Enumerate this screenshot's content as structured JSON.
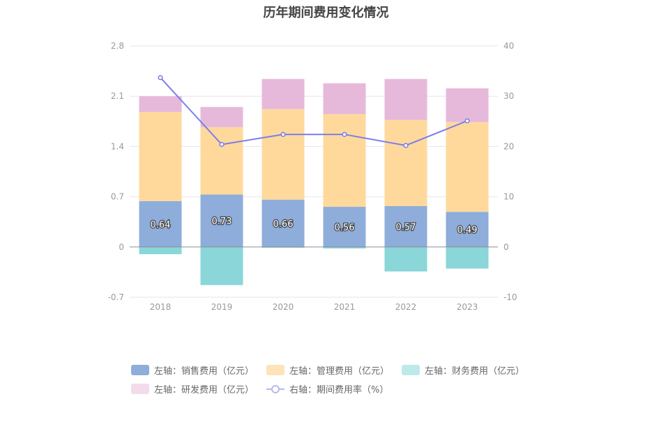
{
  "chart_data": {
    "type": "bar",
    "title": "历年期间费用变化情况",
    "categories": [
      "2018",
      "2019",
      "2020",
      "2021",
      "2022",
      "2023"
    ],
    "left_axis": {
      "min": -0.7,
      "max": 2.8,
      "ticks": [
        "-0.7",
        "0",
        "0.7",
        "1.4",
        "2.1",
        "2.8"
      ]
    },
    "right_axis": {
      "min": -10,
      "max": 40,
      "ticks": [
        "-10",
        "0",
        "10",
        "20",
        "30",
        "40"
      ]
    },
    "series": [
      {
        "name": "左轴：销售费用（亿元）",
        "type": "bar",
        "axis": "left",
        "color": "#8eaddb",
        "values": [
          0.64,
          0.73,
          0.66,
          0.56,
          0.57,
          0.49
        ],
        "show_labels": true
      },
      {
        "name": "左轴：管理费用（亿元）",
        "type": "bar",
        "axis": "left",
        "color": "#ffd99c",
        "values": [
          1.24,
          0.94,
          1.26,
          1.29,
          1.2,
          1.25
        ]
      },
      {
        "name": "左轴：财务费用（亿元）",
        "type": "bar",
        "axis": "left",
        "color": "#8ad6d9",
        "values": [
          -0.1,
          -0.53,
          -0.01,
          -0.02,
          -0.34,
          -0.3
        ]
      },
      {
        "name": "左轴：研发费用（亿元）",
        "type": "bar",
        "axis": "left",
        "color": "#e6b9da",
        "values": [
          0.22,
          0.28,
          0.42,
          0.43,
          0.57,
          0.47
        ]
      },
      {
        "name": "右轴：期间费用率（%）",
        "type": "line",
        "axis": "right",
        "color": "#7b7fe6",
        "values": [
          33.7,
          20.4,
          22.4,
          22.4,
          20.2,
          25.1
        ]
      }
    ],
    "legend": [
      {
        "label": "左轴：销售费用（亿元）",
        "color": "#8eaddb",
        "kind": "bar"
      },
      {
        "label": "左轴：管理费用（亿元）",
        "color": "#fde3b8",
        "kind": "bar"
      },
      {
        "label": "左轴：财务费用（亿元）",
        "color": "#bde9eb",
        "kind": "bar"
      },
      {
        "label": "左轴：研发费用（亿元）",
        "color": "#f3dbec",
        "kind": "bar"
      },
      {
        "label": "右轴：期间费用率（%）",
        "color": "#b7b9f0",
        "kind": "line"
      }
    ],
    "legend_position": "bottom",
    "grid": true
  }
}
